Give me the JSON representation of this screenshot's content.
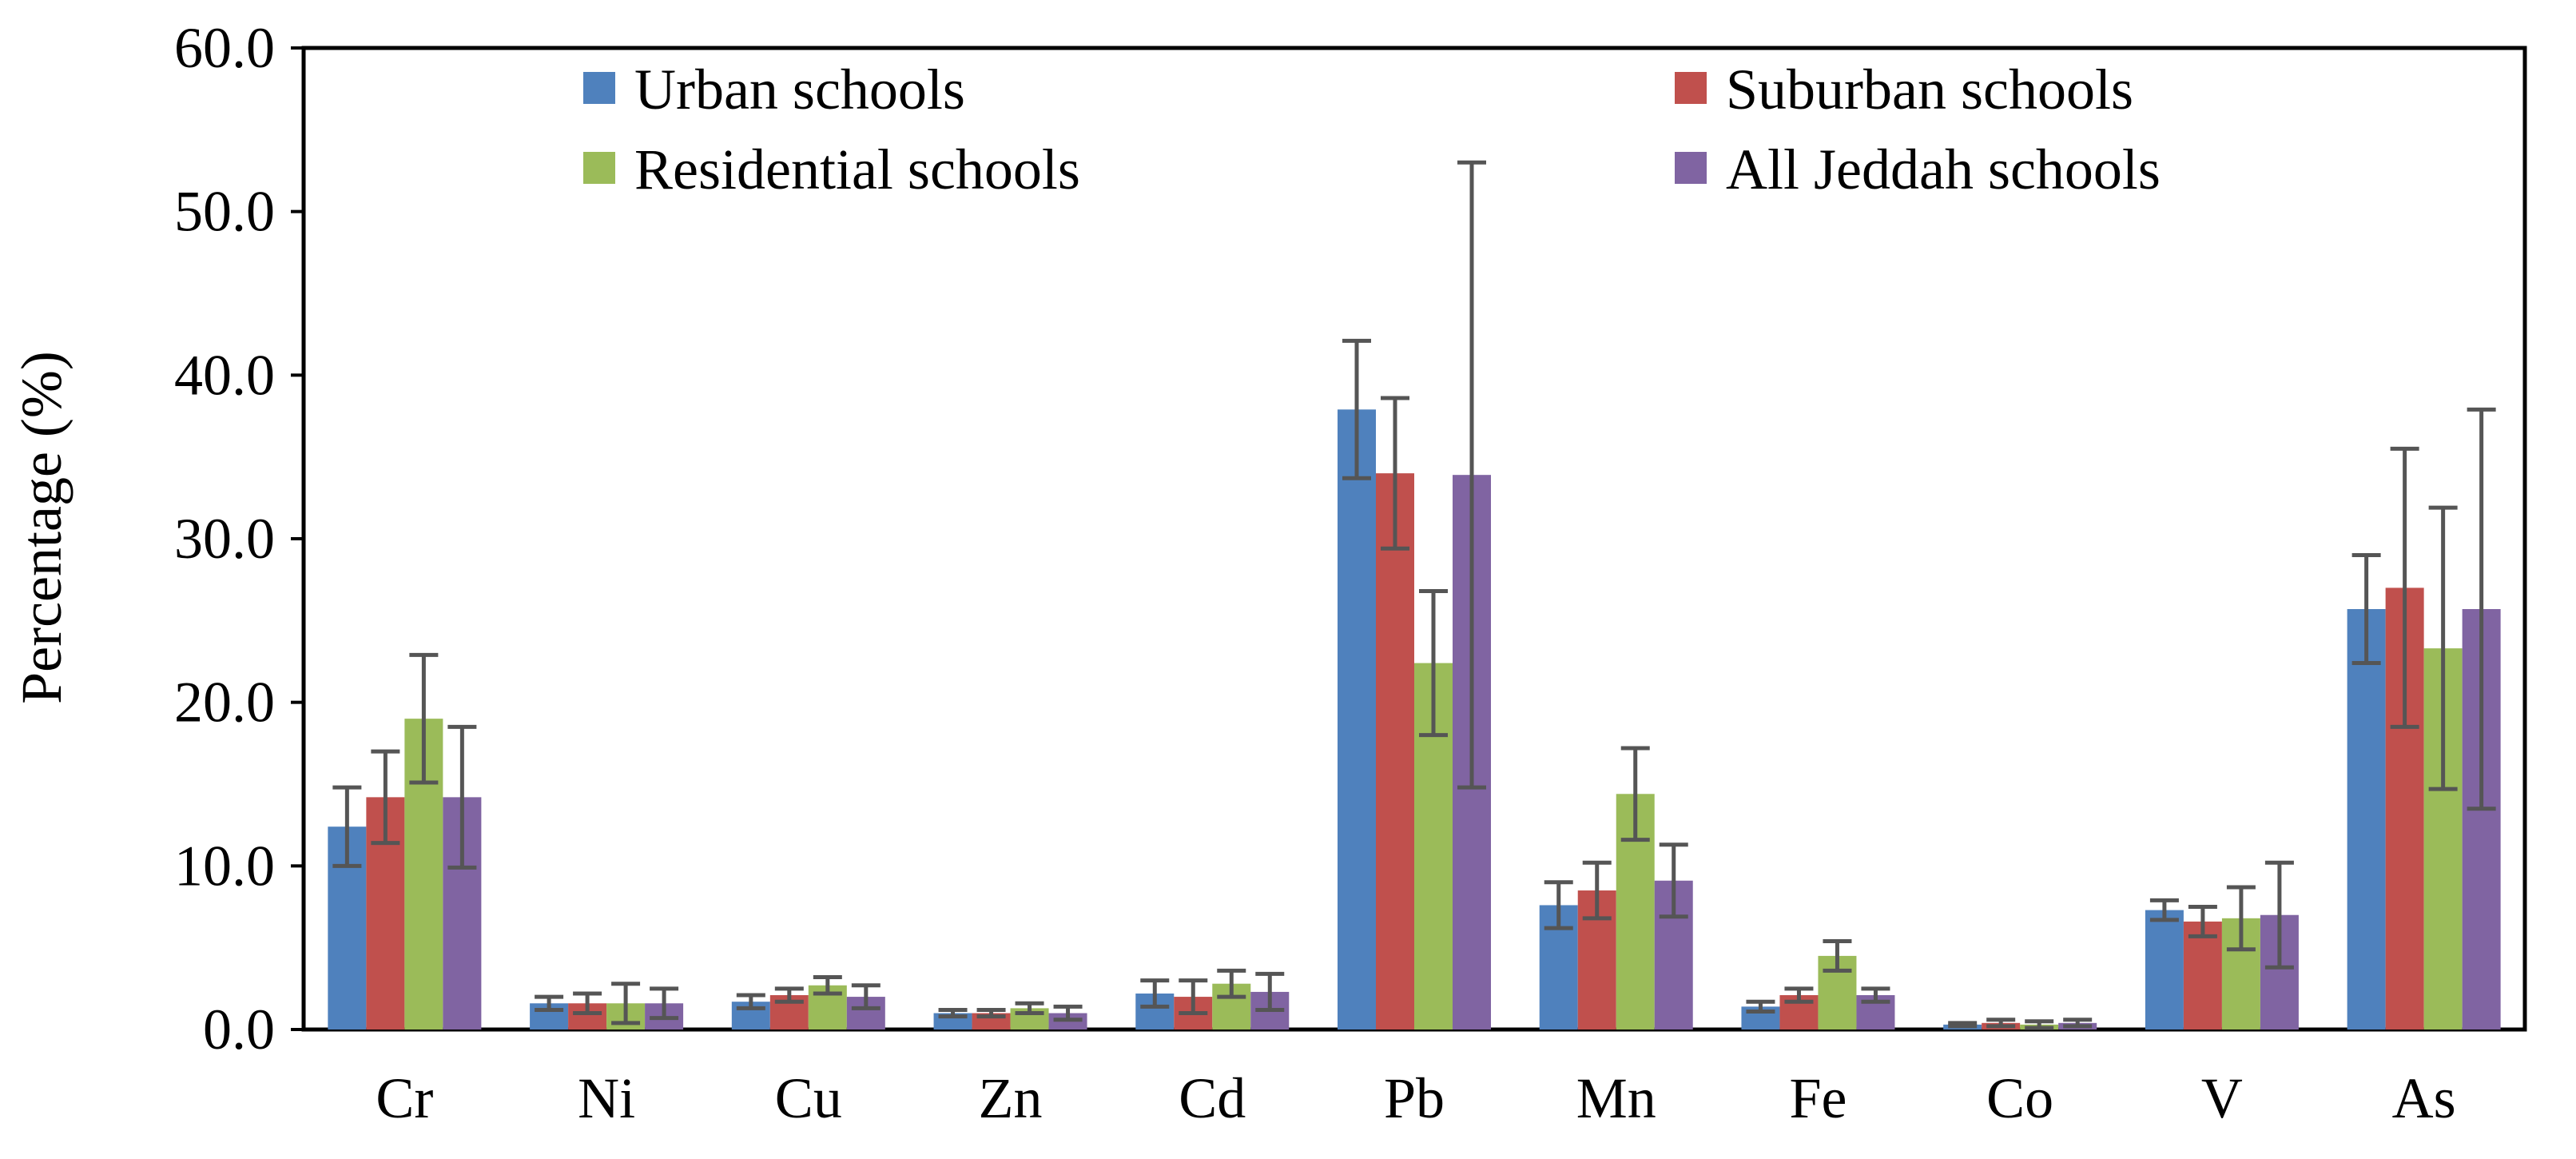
{
  "chart_data": {
    "type": "bar",
    "title": "",
    "xlabel": "",
    "ylabel": "Percentage (%)",
    "ylim": [
      0,
      60
    ],
    "yticks": [
      "0.0",
      "10.0",
      "20.0",
      "30.0",
      "40.0",
      "50.0",
      "60.0"
    ],
    "categories": [
      "Cr",
      "Ni",
      "Cu",
      "Zn",
      "Cd",
      "Pb",
      "Mn",
      "Fe",
      "Co",
      "V",
      "As"
    ],
    "legend_position": "top",
    "series": [
      {
        "name": "Urban schools",
        "color": "#4F81BD",
        "values": [
          12.4,
          1.6,
          1.7,
          1.0,
          2.2,
          37.9,
          7.6,
          1.4,
          0.3,
          7.3,
          25.7
        ],
        "errors": [
          2.4,
          0.4,
          0.4,
          0.2,
          0.8,
          4.2,
          1.4,
          0.3,
          0.1,
          0.6,
          3.3
        ]
      },
      {
        "name": "Suburban schools",
        "color": "#C0504D",
        "values": [
          14.2,
          1.6,
          2.1,
          1.0,
          2.0,
          34.0,
          8.5,
          2.1,
          0.4,
          6.6,
          27.0
        ],
        "errors": [
          2.8,
          0.6,
          0.4,
          0.2,
          1.0,
          4.6,
          1.7,
          0.4,
          0.2,
          0.9,
          8.5
        ]
      },
      {
        "name": "Residential schools",
        "color": "#9BBB59",
        "values": [
          19.0,
          1.6,
          2.7,
          1.3,
          2.8,
          22.4,
          14.4,
          4.5,
          0.3,
          6.8,
          23.3
        ],
        "errors": [
          3.9,
          1.2,
          0.5,
          0.3,
          0.8,
          4.4,
          2.8,
          0.9,
          0.2,
          1.9,
          8.6
        ]
      },
      {
        "name": "All Jeddah schools",
        "color": "#8064A2",
        "values": [
          14.2,
          1.6,
          2.0,
          1.0,
          2.3,
          33.9,
          9.1,
          2.1,
          0.4,
          7.0,
          25.7
        ],
        "errors": [
          4.3,
          0.9,
          0.7,
          0.4,
          1.1,
          19.1,
          2.2,
          0.4,
          0.2,
          3.2,
          12.2
        ]
      }
    ]
  }
}
